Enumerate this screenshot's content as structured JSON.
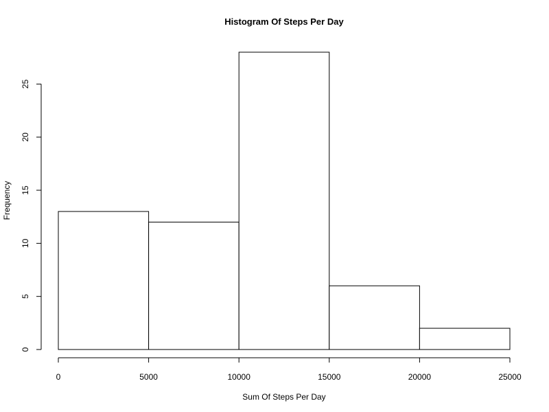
{
  "chart_data": {
    "type": "bar",
    "title": "Histogram Of Steps Per Day",
    "xlabel": "Sum Of Steps Per Day",
    "ylabel": "Frequency",
    "bins": [
      {
        "start": 0,
        "end": 5000,
        "count": 13
      },
      {
        "start": 5000,
        "end": 10000,
        "count": 12
      },
      {
        "start": 10000,
        "end": 15000,
        "count": 28
      },
      {
        "start": 15000,
        "end": 20000,
        "count": 6
      },
      {
        "start": 20000,
        "end": 25000,
        "count": 2
      }
    ],
    "xlim": [
      0,
      25000
    ],
    "ylim": [
      0,
      28
    ],
    "x_ticks": [
      0,
      5000,
      10000,
      15000,
      20000,
      25000
    ],
    "x_tick_labels": [
      "0",
      "5000",
      "10000",
      "15000",
      "20000",
      "25000"
    ],
    "y_ticks": [
      0,
      5,
      10,
      15,
      20,
      25
    ],
    "y_tick_labels": [
      "0",
      "5",
      "10",
      "15",
      "20",
      "25"
    ],
    "bar_fill": "#ffffff",
    "bar_stroke": "#000000",
    "grid": false
  }
}
